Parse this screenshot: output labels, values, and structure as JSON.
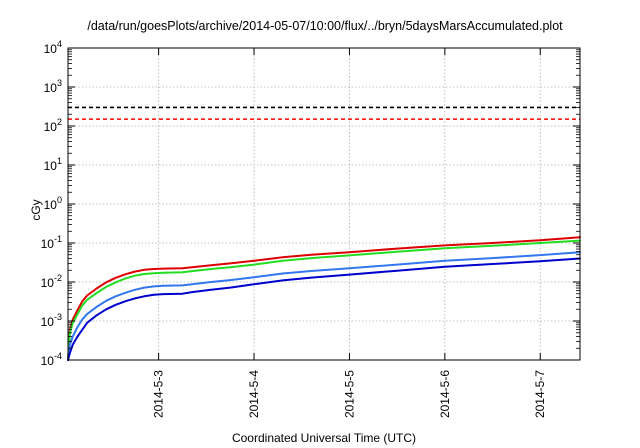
{
  "chart_data": {
    "type": "line",
    "title": "/data/run/goesPlots/archive/2014-05-07/10:00/flux/../bryn/5daysMarsAccumulated.plot",
    "xlabel": "Coordinated Universal Time (UTC)",
    "ylabel": "cGy",
    "y_scale": "log",
    "ylim": [
      0.0001,
      10000
    ],
    "xlim": [
      "2014-05-02 01:12",
      "2014-05-07 10:00"
    ],
    "grid": true,
    "legend": "none",
    "x_ticks": [
      {
        "value": "2014-05-03",
        "label": "2014-5-3"
      },
      {
        "value": "2014-05-04",
        "label": "2014-5-4"
      },
      {
        "value": "2014-05-05",
        "label": "2014-5-5"
      },
      {
        "value": "2014-05-06",
        "label": "2014-5-6"
      },
      {
        "value": "2014-05-07",
        "label": "2014-5-7"
      }
    ],
    "y_ticks": [
      {
        "value": 0.0001,
        "base": "10",
        "exp": "-4"
      },
      {
        "value": 0.001,
        "base": "10",
        "exp": "-3"
      },
      {
        "value": 0.01,
        "base": "10",
        "exp": "-2"
      },
      {
        "value": 0.1,
        "base": "10",
        "exp": "-1"
      },
      {
        "value": 1,
        "base": "10",
        "exp": "0"
      },
      {
        "value": 10,
        "base": "10",
        "exp": "1"
      },
      {
        "value": 100,
        "base": "10",
        "exp": "2"
      },
      {
        "value": 1000,
        "base": "10",
        "exp": "3"
      },
      {
        "value": 10000,
        "base": "10",
        "exp": "4"
      }
    ],
    "reference_lines": [
      {
        "value": 300,
        "color": "#000000",
        "style": "dashed"
      },
      {
        "value": 150,
        "color": "#ff0000",
        "style": "dashed"
      }
    ],
    "series": [
      {
        "color": "#dd0000",
        "points": [
          [
            "2014-05-02 01:12",
            0.0001
          ],
          [
            "2014-05-02 01:40",
            0.0006
          ],
          [
            "2014-05-02 02:24",
            0.0011
          ],
          [
            "2014-05-02 03:36",
            0.0019
          ],
          [
            "2014-05-02 04:48",
            0.0032
          ],
          [
            "2014-05-02 06:00",
            0.0045
          ],
          [
            "2014-05-02 08:24",
            0.0068
          ],
          [
            "2014-05-02 10:48",
            0.0098
          ],
          [
            "2014-05-02 13:12",
            0.0128
          ],
          [
            "2014-05-02 15:36",
            0.0158
          ],
          [
            "2014-05-02 18:00",
            0.0185
          ],
          [
            "2014-05-02 20:24",
            0.0205
          ],
          [
            "2014-05-02 22:48",
            0.0215
          ],
          [
            "2014-05-03 01:12",
            0.022
          ],
          [
            "2014-05-03 06:00",
            0.0225
          ],
          [
            "2014-05-03 08:24",
            0.024
          ],
          [
            "2014-05-03 13:12",
            0.027
          ],
          [
            "2014-05-03 18:00",
            0.03
          ],
          [
            "2014-05-04 00:00",
            0.035
          ],
          [
            "2014-05-04 07:12",
            0.043
          ],
          [
            "2014-05-04 14:24",
            0.05
          ],
          [
            "2014-05-05 00:00",
            0.058
          ],
          [
            "2014-05-05 12:00",
            0.072
          ],
          [
            "2014-05-06 00:00",
            0.087
          ],
          [
            "2014-05-06 12:00",
            0.1
          ],
          [
            "2014-05-07 00:00",
            0.118
          ],
          [
            "2014-05-07 10:00",
            0.14
          ]
        ]
      },
      {
        "color": "#22dd22",
        "points": [
          [
            "2014-05-02 01:12",
            0.0001
          ],
          [
            "2014-05-02 01:40",
            0.0005
          ],
          [
            "2014-05-02 02:24",
            0.0009
          ],
          [
            "2014-05-02 03:36",
            0.0015
          ],
          [
            "2014-05-02 04:48",
            0.0025
          ],
          [
            "2014-05-02 06:00",
            0.0035
          ],
          [
            "2014-05-02 08:24",
            0.0052
          ],
          [
            "2014-05-02 10:48",
            0.0075
          ],
          [
            "2014-05-02 13:12",
            0.0098
          ],
          [
            "2014-05-02 15:36",
            0.0122
          ],
          [
            "2014-05-02 18:00",
            0.0145
          ],
          [
            "2014-05-02 20:24",
            0.016
          ],
          [
            "2014-05-02 22:48",
            0.0168
          ],
          [
            "2014-05-03 01:12",
            0.0172
          ],
          [
            "2014-05-03 06:00",
            0.0178
          ],
          [
            "2014-05-03 08:24",
            0.019
          ],
          [
            "2014-05-03 13:12",
            0.0215
          ],
          [
            "2014-05-03 18:00",
            0.024
          ],
          [
            "2014-05-04 00:00",
            0.028
          ],
          [
            "2014-05-04 07:12",
            0.035
          ],
          [
            "2014-05-04 14:24",
            0.041
          ],
          [
            "2014-05-05 00:00",
            0.048
          ],
          [
            "2014-05-05 12:00",
            0.06
          ],
          [
            "2014-05-06 00:00",
            0.073
          ],
          [
            "2014-05-06 12:00",
            0.085
          ],
          [
            "2014-05-07 00:00",
            0.1
          ],
          [
            "2014-05-07 10:00",
            0.115
          ]
        ]
      },
      {
        "color": "#3377ee",
        "points": [
          [
            "2014-05-02 01:12",
            0.0001
          ],
          [
            "2014-05-02 01:40",
            0.00025
          ],
          [
            "2014-05-02 02:24",
            0.0004
          ],
          [
            "2014-05-02 03:36",
            0.0007
          ],
          [
            "2014-05-02 04:48",
            0.0011
          ],
          [
            "2014-05-02 06:00",
            0.0015
          ],
          [
            "2014-05-02 08:24",
            0.0023
          ],
          [
            "2014-05-02 10:48",
            0.0033
          ],
          [
            "2014-05-02 13:12",
            0.0043
          ],
          [
            "2014-05-02 15:36",
            0.0053
          ],
          [
            "2014-05-02 18:00",
            0.0063
          ],
          [
            "2014-05-02 20:24",
            0.0072
          ],
          [
            "2014-05-02 22:48",
            0.0077
          ],
          [
            "2014-05-03 01:12",
            0.008
          ],
          [
            "2014-05-03 06:00",
            0.0082
          ],
          [
            "2014-05-03 08:24",
            0.0088
          ],
          [
            "2014-05-03 13:12",
            0.01
          ],
          [
            "2014-05-03 18:00",
            0.0112
          ],
          [
            "2014-05-04 00:00",
            0.0132
          ],
          [
            "2014-05-04 07:12",
            0.0165
          ],
          [
            "2014-05-04 14:24",
            0.0192
          ],
          [
            "2014-05-05 00:00",
            0.0225
          ],
          [
            "2014-05-05 12:00",
            0.028
          ],
          [
            "2014-05-06 00:00",
            0.035
          ],
          [
            "2014-05-06 12:00",
            0.041
          ],
          [
            "2014-05-07 00:00",
            0.049
          ],
          [
            "2014-05-07 10:00",
            0.058
          ]
        ]
      },
      {
        "color": "#0000cc",
        "points": [
          [
            "2014-05-02 01:12",
            0.0001
          ],
          [
            "2014-05-02 01:40",
            0.00015
          ],
          [
            "2014-05-02 02:24",
            0.00025
          ],
          [
            "2014-05-02 03:36",
            0.0004
          ],
          [
            "2014-05-02 04:48",
            0.0006
          ],
          [
            "2014-05-02 06:00",
            0.0009
          ],
          [
            "2014-05-02 08:24",
            0.0014
          ],
          [
            "2014-05-02 10:48",
            0.002
          ],
          [
            "2014-05-02 13:12",
            0.0026
          ],
          [
            "2014-05-02 15:36",
            0.0032
          ],
          [
            "2014-05-02 18:00",
            0.0038
          ],
          [
            "2014-05-02 20:24",
            0.0043
          ],
          [
            "2014-05-02 22:48",
            0.0047
          ],
          [
            "2014-05-03 01:12",
            0.0049
          ],
          [
            "2014-05-03 06:00",
            0.005
          ],
          [
            "2014-05-03 08:24",
            0.0055
          ],
          [
            "2014-05-03 13:12",
            0.0063
          ],
          [
            "2014-05-03 18:00",
            0.0072
          ],
          [
            "2014-05-04 00:00",
            0.0088
          ],
          [
            "2014-05-04 07:12",
            0.011
          ],
          [
            "2014-05-04 14:24",
            0.013
          ],
          [
            "2014-05-05 00:00",
            0.0155
          ],
          [
            "2014-05-05 12:00",
            0.0195
          ],
          [
            "2014-05-06 00:00",
            0.0245
          ],
          [
            "2014-05-06 12:00",
            0.029
          ],
          [
            "2014-05-07 00:00",
            0.034
          ],
          [
            "2014-05-07 10:00",
            0.04
          ]
        ]
      }
    ]
  }
}
